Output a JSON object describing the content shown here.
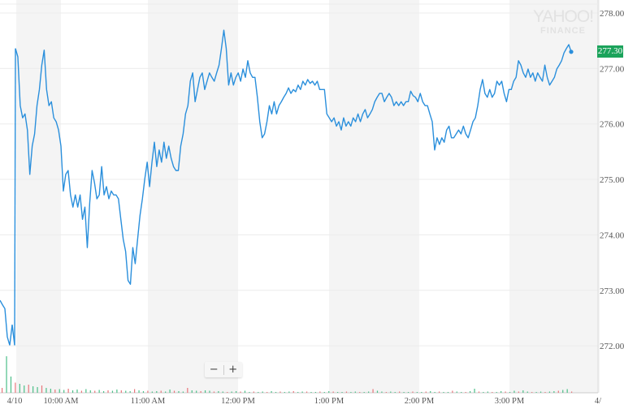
{
  "chart_data": {
    "type": "line",
    "title": "",
    "xlabel": "",
    "ylabel": "",
    "ylim": [
      271.6,
      278.25
    ],
    "y_ticks": [
      "278.00",
      "277.00",
      "276.00",
      "275.00",
      "274.00",
      "273.00",
      "272.00"
    ],
    "y_tick_values": [
      278,
      277,
      276,
      275,
      274,
      273,
      272
    ],
    "x_ticks": [
      "4/10",
      "10:00 AM",
      "11:00 AM",
      "12:00 PM",
      "1:00 PM",
      "2:00 PM",
      "3:00 PM",
      "4/"
    ],
    "x_start": "09:30",
    "x_end": "15:56",
    "grid": true,
    "line_color": "#2a8fdc",
    "up_color": "#4cbf88",
    "down_color": "#e8757a",
    "band_color": "#f4f4f4",
    "previous_session_values": [
      272.82,
      272.74,
      272.67,
      272.16,
      272.01,
      272.38,
      272.01
    ],
    "series": [
      {
        "values": [
          277.36,
          277.21,
          276.33,
          276.11,
          276.18,
          275.89,
          275.09,
          275.6,
          275.82,
          276.33,
          276.62,
          277.06,
          277.33,
          276.62,
          276.33,
          276.4,
          276.11,
          276.04,
          275.89,
          275.6,
          274.79,
          275.09,
          275.16,
          274.72,
          274.5,
          274.72,
          274.5,
          274.72,
          274.28,
          274.5,
          273.77,
          274.57,
          275.16,
          274.94,
          274.65,
          274.72,
          275.23,
          274.72,
          274.87,
          274.65,
          274.79,
          274.72,
          274.72,
          274.65,
          274.28,
          273.92,
          273.7,
          273.18,
          273.11,
          273.77,
          273.48,
          273.92,
          274.35,
          274.65,
          275.01,
          275.31,
          274.87,
          275.31,
          275.67,
          275.23,
          275.53,
          275.31,
          275.67,
          275.38,
          275.6,
          275.38,
          275.23,
          275.16,
          275.16,
          275.6,
          275.82,
          276.18,
          276.33,
          276.77,
          276.92,
          276.4,
          276.62,
          276.84,
          276.92,
          276.62,
          276.77,
          276.92,
          276.84,
          276.77,
          276.92,
          277.06,
          277.36,
          277.69,
          277.36,
          276.7,
          276.92,
          276.7,
          276.84,
          276.92,
          276.77,
          276.99,
          276.84,
          277.14,
          276.92,
          276.84,
          276.84,
          276.48,
          276.04,
          275.75,
          275.82,
          276.04,
          276.33,
          276.18,
          276.4,
          276.18,
          276.33,
          276.4,
          276.48,
          276.55,
          276.65,
          276.55,
          276.62,
          276.58,
          276.7,
          276.62,
          276.77,
          276.7,
          276.8,
          276.73,
          276.77,
          276.7,
          276.77,
          276.62,
          276.62,
          276.62,
          276.18,
          276.11,
          276.04,
          276.11,
          275.96,
          276.04,
          275.89,
          276.11,
          275.96,
          276.04,
          275.96,
          276.11,
          276.04,
          276.18,
          276.04,
          276.18,
          276.26,
          276.11,
          276.18,
          276.26,
          276.4,
          276.48,
          276.55,
          276.55,
          276.4,
          276.48,
          276.55,
          276.48,
          276.33,
          276.4,
          276.33,
          276.4,
          276.33,
          276.4,
          276.4,
          276.59,
          276.51,
          276.48,
          276.4,
          276.55,
          276.4,
          276.33,
          276.33,
          276.18,
          276.04,
          275.53,
          275.75,
          275.63,
          275.75,
          275.67,
          275.89,
          275.96,
          275.75,
          275.75,
          275.82,
          275.89,
          275.82,
          275.96,
          275.82,
          275.75,
          275.89,
          276.04,
          276.11,
          276.33,
          276.62,
          276.8,
          276.55,
          276.48,
          276.62,
          276.48,
          276.55,
          276.77,
          276.7,
          276.77,
          276.55,
          276.4,
          276.62,
          276.62,
          276.77,
          276.84,
          277.14,
          277.06,
          276.92,
          276.84,
          276.99,
          276.84,
          276.92,
          276.77,
          276.92,
          276.84,
          276.77,
          277.06,
          276.84,
          276.7,
          276.77,
          276.84,
          276.99,
          277.06,
          277.14,
          277.28,
          277.36,
          277.43,
          277.3
        ]
      }
    ],
    "volume": [
      12,
      90,
      40,
      25,
      22,
      18,
      20,
      16,
      14,
      18,
      12,
      10,
      8,
      9,
      7,
      10,
      6,
      8,
      5,
      9,
      6,
      5,
      7,
      4,
      6,
      5,
      8,
      6,
      5,
      4,
      9,
      6,
      4,
      5,
      3,
      4,
      5,
      3,
      8,
      5,
      4,
      3,
      12,
      6,
      5,
      4,
      6,
      5,
      3,
      4,
      3,
      2,
      3,
      4,
      3,
      5,
      2,
      3,
      2,
      3,
      2,
      4,
      2,
      3,
      2,
      3,
      4,
      2,
      3,
      3,
      2,
      2,
      3,
      2,
      4,
      3,
      2,
      2,
      3,
      2,
      3,
      2,
      2,
      3,
      9,
      5,
      3,
      2,
      3,
      2,
      3,
      2,
      2,
      3,
      2,
      2,
      3,
      4,
      2,
      3,
      2,
      2,
      5,
      3,
      2,
      2,
      4,
      10,
      3,
      2,
      3,
      2,
      2,
      4,
      3,
      2,
      5,
      3,
      6,
      3,
      2,
      2,
      3,
      2,
      3,
      4,
      5,
      7,
      9,
      3
    ]
  },
  "current_price": {
    "label": "277.30",
    "color": "#1ba35b"
  },
  "watermark": {
    "line1": "YAHOO!",
    "line2": "FINANCE"
  },
  "zoom_controls": {
    "zoom_out": "−",
    "zoom_in": "+"
  }
}
